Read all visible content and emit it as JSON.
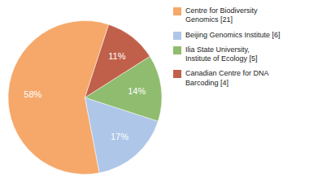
{
  "chart_data": {
    "type": "pie",
    "categories": [
      "Centre for Biodiversity\nGenomics [21]",
      "Beijing Genomics Institute [6]",
      "Ilia State University,\nInstitute of Ecology [5]",
      "Canadian Centre for DNA\nBarcoding [4]"
    ],
    "values": [
      58,
      17,
      14,
      11
    ],
    "value_labels": [
      "58%",
      "17%",
      "14%",
      "11%"
    ],
    "colors": [
      "#f5a86a",
      "#aec6e8",
      "#8fbc6f",
      "#c0604a"
    ],
    "data_labels": true,
    "legend": "right"
  }
}
